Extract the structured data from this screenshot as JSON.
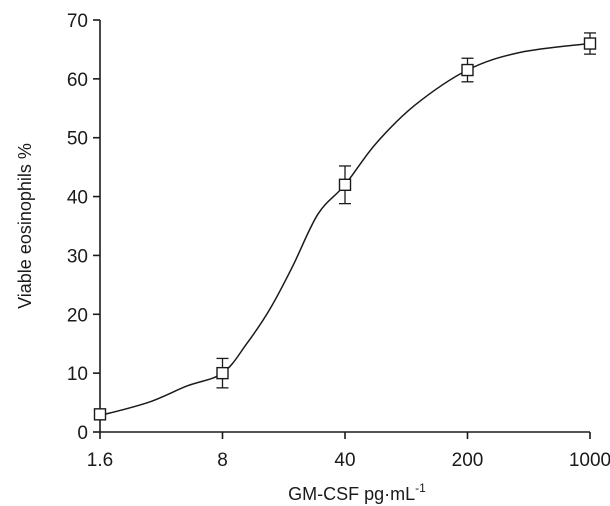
{
  "chart_data": {
    "type": "line",
    "x_scale": "log",
    "x": [
      1.6,
      8,
      40,
      200,
      1000
    ],
    "series": [
      {
        "values": [
          3,
          10,
          42,
          61.5,
          66
        ],
        "error": [
          0.5,
          2.5,
          3.2,
          2.0,
          1.8
        ],
        "marker": "open-square",
        "line": "smooth-fit",
        "fit_curve": [
          [
            1.6,
            2.8
          ],
          [
            3,
            5
          ],
          [
            5,
            7.8
          ],
          [
            8,
            10
          ],
          [
            11,
            15
          ],
          [
            15,
            21
          ],
          [
            20,
            28
          ],
          [
            28,
            37
          ],
          [
            40,
            42
          ],
          [
            60,
            49
          ],
          [
            100,
            55.5
          ],
          [
            200,
            61.5
          ],
          [
            400,
            64.5
          ],
          [
            1000,
            66
          ]
        ]
      }
    ],
    "xticks": [
      1.6,
      8,
      40,
      200,
      1000
    ],
    "xtick_labels": [
      "1.6",
      "8",
      "40",
      "200",
      "1000"
    ],
    "yticks": [
      0,
      10,
      20,
      30,
      40,
      50,
      60,
      70
    ],
    "ytick_labels": [
      "0",
      "10",
      "20",
      "30",
      "40",
      "50",
      "60",
      "70"
    ],
    "xlim": [
      1.6,
      1000
    ],
    "ylim": [
      0,
      70
    ],
    "xlabel": "GM-CSF  pg·mL",
    "xlabel_superscript": "-1",
    "ylabel": "Viable eosinophils  %",
    "grid": false,
    "line_color": "#1a1a1a"
  }
}
